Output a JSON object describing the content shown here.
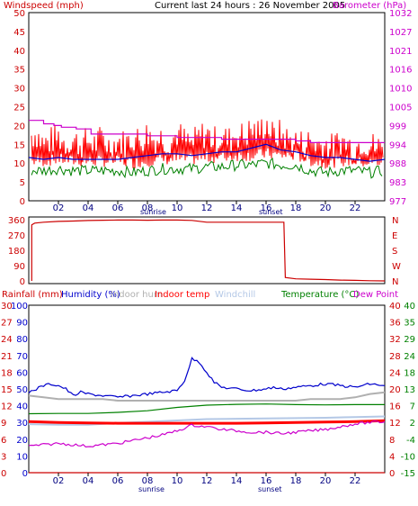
{
  "header": {
    "left_title": "Windspeed (mph)",
    "center_title": "Current last 24 hours : 26 November 2005",
    "right_title": "Barometer (hPa)"
  },
  "colors": {
    "windspeed": "#ff0000",
    "gust_fill": "#ff0000",
    "wind_avg": "#0000cc",
    "barometer": "#cc00cc",
    "direction": "#cc0000",
    "humidity": "#0000cc",
    "indoor_humidity": "#b0b0b0",
    "indoor_temp": "#ff0000",
    "windchill": "#b4c8e6",
    "temperature": "#008000",
    "dew_point": "#cc00cc",
    "rainfall": "#cc0000",
    "frame": "#ff0000",
    "tick_text": "#0000cc"
  },
  "chart_data": [
    {
      "type": "line",
      "name": "wind-barometer",
      "x_ticks": [
        "02",
        "04",
        "06",
        "08",
        "10",
        "12",
        "14",
        "16",
        "18",
        "20",
        "22"
      ],
      "x_markers": [
        "sunrise",
        "sunset"
      ],
      "xlim": [
        0,
        24
      ],
      "y_left": {
        "label": "Windspeed (mph)",
        "ticks": [
          0,
          5,
          10,
          15,
          20,
          25,
          30,
          35,
          40,
          45,
          50
        ],
        "lim": [
          0,
          50
        ]
      },
      "y_right": {
        "label": "Barometer (hPa)",
        "ticks": [
          977,
          983,
          988,
          994,
          999,
          1005,
          1010,
          1016,
          1021,
          1027,
          1032
        ],
        "lim": [
          977,
          1032
        ]
      },
      "series": [
        {
          "name": "Windspeed (mph)",
          "axis": "left",
          "kind": "gust-bars",
          "x": [
            0,
            0.5,
            1,
            1.5,
            2,
            2.5,
            3,
            3.5,
            4,
            4.5,
            5,
            5.5,
            6,
            6.5,
            7,
            7.5,
            8,
            8.5,
            9,
            9.5,
            10,
            10.5,
            11,
            11.5,
            12,
            12.5,
            13,
            13.5,
            14,
            14.5,
            15,
            15.5,
            16,
            16.5,
            17,
            17.5,
            18,
            18.5,
            19,
            19.5,
            20,
            20.5,
            21,
            21.5,
            22,
            22.5,
            23,
            23.5,
            24
          ],
          "values": [
            17,
            18,
            15,
            16,
            17,
            15,
            16,
            15,
            16,
            15,
            17,
            14,
            16,
            15,
            17,
            16,
            18,
            16,
            17,
            15,
            18,
            16,
            15,
            17,
            18,
            16,
            17,
            16,
            18,
            17,
            19,
            18,
            21,
            17,
            18,
            16,
            16,
            15,
            16,
            15,
            15,
            14,
            16,
            15,
            14,
            16,
            15,
            14,
            15
          ]
        },
        {
          "name": "Windspeed (mph) average",
          "axis": "left",
          "kind": "line",
          "x": [
            0,
            1,
            2,
            3,
            4,
            5,
            6,
            7,
            8,
            9,
            10,
            11,
            12,
            13,
            14,
            15,
            16,
            17,
            18,
            19,
            20,
            21,
            22,
            23,
            24
          ],
          "values": [
            11.5,
            11,
            11.5,
            11,
            11,
            11,
            11,
            11.5,
            12,
            12.5,
            12.5,
            12,
            12.5,
            13,
            13,
            14,
            15,
            13.5,
            13,
            12,
            11.5,
            11.5,
            11,
            10.5,
            11
          ]
        },
        {
          "name": "Windspeed low",
          "axis": "left",
          "kind": "line",
          "x": [
            0,
            1,
            2,
            3,
            4,
            5,
            6,
            7,
            8,
            9,
            10,
            11,
            12,
            13,
            14,
            15,
            16,
            17,
            18,
            19,
            20,
            21,
            22,
            23,
            24
          ],
          "values": [
            8,
            8,
            8.5,
            8,
            8,
            8,
            8,
            7.5,
            8,
            8.5,
            8.5,
            8.5,
            9,
            9,
            9.5,
            9.5,
            10,
            9.5,
            9.5,
            8,
            7.5,
            8,
            8,
            7.5,
            8
          ]
        },
        {
          "name": "Barometer (hPa)",
          "axis": "right",
          "kind": "step",
          "x": [
            0,
            1,
            1.7,
            2.2,
            3.2,
            4.2,
            6,
            8,
            10,
            12,
            13,
            14,
            16,
            18,
            19,
            20,
            22,
            24
          ],
          "values": [
            1000.5,
            999.5,
            999,
            998.5,
            998,
            996.5,
            996.5,
            996,
            995.5,
            995.5,
            995,
            995,
            995,
            994.5,
            994,
            994,
            994,
            994
          ]
        }
      ]
    },
    {
      "type": "line",
      "name": "wind-direction",
      "xlim": [
        0,
        24
      ],
      "y_left": {
        "ticks": [
          0,
          90,
          180,
          270,
          360
        ],
        "lim": [
          0,
          360
        ]
      },
      "y_right": {
        "ticks": [
          "N",
          "W",
          "S",
          "E",
          "N"
        ]
      },
      "series": [
        {
          "name": "Wind direction",
          "kind": "line",
          "x": [
            0.2,
            0.4,
            1,
            2,
            3,
            4,
            5,
            6,
            7,
            8,
            9,
            10,
            11,
            12,
            13,
            14,
            15,
            16,
            17.2,
            17.3,
            18,
            19,
            20,
            21,
            22,
            23,
            24
          ],
          "values": [
            330,
            340,
            345,
            350,
            352,
            355,
            357,
            358,
            358,
            357,
            358,
            358,
            356,
            345,
            345,
            345,
            345,
            345,
            345,
            20,
            12,
            10,
            8,
            5,
            3,
            1,
            0
          ]
        }
      ]
    },
    {
      "type": "line",
      "name": "humidity-temperature",
      "x_ticks": [
        "02",
        "04",
        "06",
        "08",
        "10",
        "12",
        "14",
        "16",
        "18",
        "20",
        "22"
      ],
      "x_markers": [
        "sunrise",
        "sunset"
      ],
      "xlim": [
        0,
        24
      ],
      "header": [
        "Rainfall (mm)",
        "Humidity (%)",
        "Indoor hum",
        "Indoor temp",
        "Windchill",
        "Temperature (°C)",
        "Dew Point"
      ],
      "axes": [
        {
          "label": "Rainfall (mm)",
          "ticks": [
            "0",
            "3",
            "6",
            "9",
            "12",
            "15",
            "18",
            "21",
            "24",
            "27",
            "30"
          ]
        },
        {
          "label": "Humidity (%)",
          "ticks": [
            "0",
            "10",
            "20",
            "30",
            "40",
            "50",
            "60",
            "70",
            "80",
            "90",
            "100"
          ]
        },
        {
          "label": "Indoor temp",
          "ticks": [
            "0",
            "4",
            "8",
            "12",
            "16",
            "20",
            "24",
            "28",
            "32",
            "36",
            "40"
          ]
        },
        {
          "label": "Temperature (°C)",
          "ticks": [
            "-15",
            "-10",
            "-4",
            "2",
            "7",
            "13",
            "18",
            "24",
            "29",
            "35",
            "40"
          ]
        }
      ],
      "series": [
        {
          "name": "Humidity (%)",
          "axis": "Humidity (%)",
          "x": [
            0,
            0.5,
            1,
            1.5,
            2,
            2.5,
            3,
            3.5,
            4,
            5,
            6,
            7,
            8,
            9,
            10,
            10.5,
            11,
            11.5,
            12,
            12.5,
            13,
            14,
            15,
            16,
            16.5,
            17,
            18,
            19,
            20,
            21,
            22,
            23,
            24
          ],
          "values": [
            48,
            50,
            52,
            53,
            52,
            50,
            46,
            48,
            47,
            46,
            45,
            46,
            47,
            48,
            49,
            55,
            68,
            66,
            60,
            54,
            51,
            50,
            49,
            50,
            51,
            50,
            51,
            52,
            53,
            52,
            51,
            53,
            52
          ]
        },
        {
          "name": "Indoor hum",
          "axis": "Humidity (%)",
          "x": [
            0,
            1,
            2,
            3,
            4,
            5,
            6,
            7,
            8,
            9,
            10,
            11,
            12,
            13,
            14,
            15,
            16,
            17,
            18,
            19,
            20,
            21,
            22,
            23,
            24
          ],
          "values": [
            46,
            45,
            44,
            44,
            44,
            44,
            43,
            43,
            43,
            43,
            43,
            43,
            43,
            43,
            43,
            43,
            43,
            43,
            43,
            44,
            44,
            44,
            45,
            47,
            48
          ]
        },
        {
          "name": "Windchill",
          "axis": "Temperature (°C)",
          "x": [
            0,
            2,
            4,
            6,
            8,
            10,
            12,
            14,
            16,
            18,
            20,
            22,
            24
          ],
          "values": [
            1.4,
            1.2,
            1.2,
            1.8,
            2.2,
            2.6,
            3.0,
            3.1,
            3.2,
            3.3,
            3.4,
            3.6,
            3.8
          ]
        },
        {
          "name": "Temperature (°C)",
          "axis": "Temperature (°C)",
          "x": [
            0,
            2,
            4,
            6,
            8,
            10,
            12,
            14,
            16,
            18,
            20,
            22,
            24
          ],
          "values": [
            4.6,
            4.7,
            4.7,
            5.0,
            5.5,
            6.5,
            7.2,
            7.5,
            7.6,
            7.4,
            7.3,
            7.4,
            7.4
          ]
        },
        {
          "name": "Indoor temp",
          "axis": "Indoor temp",
          "x": [
            0,
            2,
            4,
            6,
            8,
            10,
            12,
            14,
            16,
            18,
            20,
            22,
            24
          ],
          "values": [
            12.2,
            12.0,
            11.9,
            11.8,
            11.8,
            11.8,
            11.8,
            11.8,
            11.9,
            12.0,
            12.1,
            12.2,
            12.4
          ]
        },
        {
          "name": "Dew Point",
          "axis": "Temperature (°C)",
          "x": [
            0,
            1,
            2,
            3,
            4,
            5,
            6,
            7,
            8,
            9,
            10,
            11,
            12,
            13,
            14,
            15,
            16,
            17,
            18,
            19,
            20,
            21,
            22,
            23,
            24
          ],
          "values": [
            -6.5,
            -6,
            -5.5,
            -6,
            -6.5,
            -6,
            -5.5,
            -4.5,
            -3.5,
            -2.5,
            -1,
            1,
            0.5,
            -0.5,
            -1,
            -1.5,
            -1.5,
            -2,
            -1.5,
            -1,
            -0.5,
            0.5,
            1.5,
            2,
            2.2
          ]
        },
        {
          "name": "Rainfall (mm)",
          "axis": "Rainfall (mm)",
          "x": [
            0,
            24
          ],
          "values": [
            0,
            0
          ]
        }
      ]
    }
  ]
}
